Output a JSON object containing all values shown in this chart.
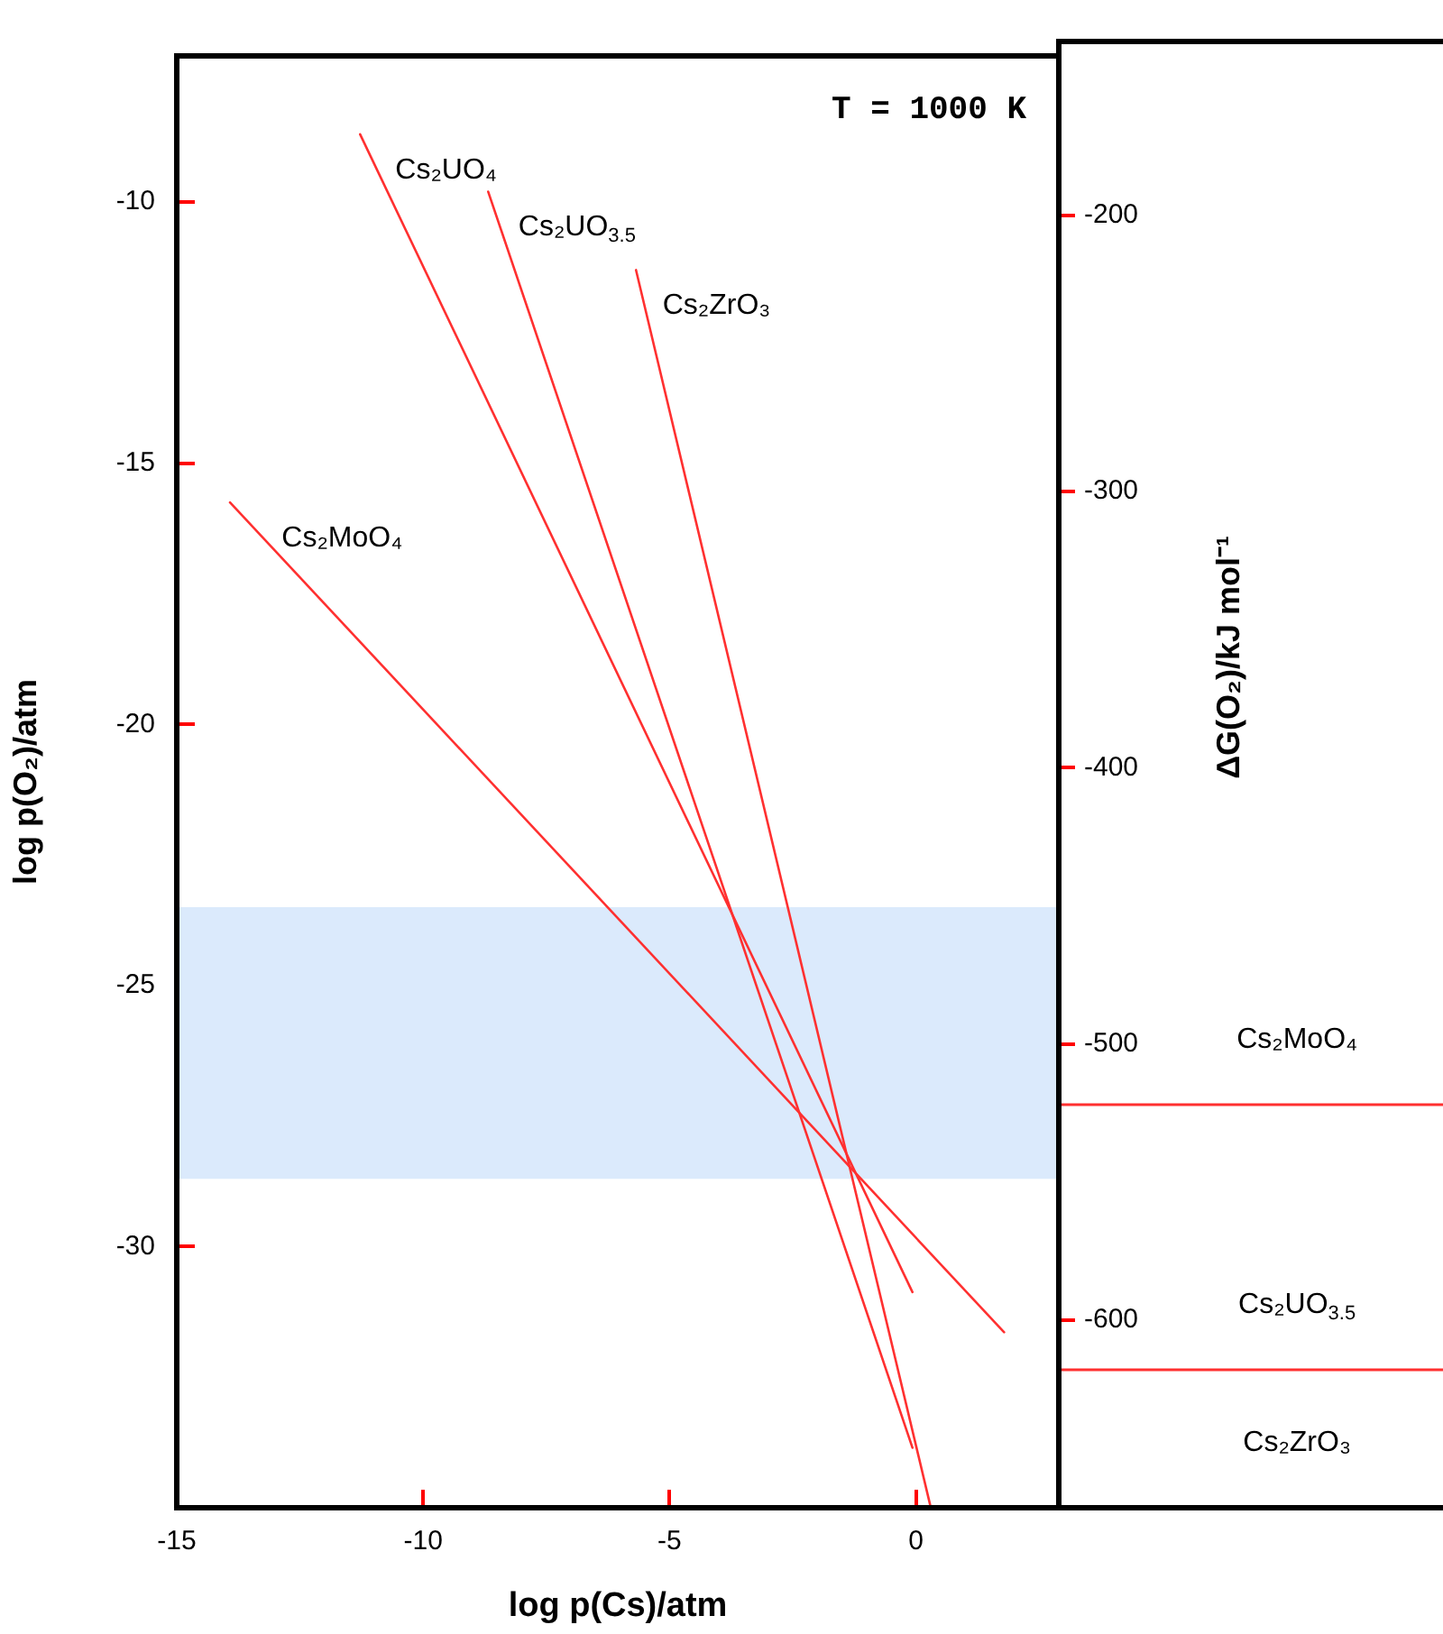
{
  "chart_data": [
    {
      "type": "line",
      "xlabel": "log p(Cs)/atm",
      "ylabel": "log p(O₂)/atm",
      "xlim": [
        -15,
        2.9
      ],
      "ylim": [
        -35,
        -7.2
      ],
      "xticks": [
        -15,
        -10,
        -5,
        0
      ],
      "yticks": [
        -10,
        -15,
        -20,
        -25,
        -30
      ],
      "series": [
        {
          "name": "Cs₂UO₄",
          "color": "#ff3030",
          "x": [
            -11.28,
            -0.07
          ],
          "values": [
            -8.7,
            -30.87
          ]
        },
        {
          "name": "Cs₂UO$_{3.5}$",
          "color": "#ff3030",
          "x": [
            -8.68,
            -0.07
          ],
          "values": [
            -9.8,
            -33.85
          ]
        },
        {
          "name": "Cs₂ZrO₃",
          "color": "#ff3030",
          "x": [
            -5.68,
            0.29
          ],
          "values": [
            -11.3,
            -34.95
          ]
        },
        {
          "name": "Cs₂MoO₄",
          "color": "#ff3030",
          "x": [
            -13.92,
            1.79
          ],
          "values": [
            -15.75,
            -31.64
          ]
        }
      ],
      "bands": [
        {
          "axis": "y",
          "from": -28.7,
          "to": -23.5,
          "color": "#dbeafc"
        }
      ],
      "annotations": [
        "T = 1000 K"
      ]
    },
    {
      "type": "line",
      "ylabel": "ΔG(O₂)/kJ mol⁻¹",
      "categories": [
        null
      ],
      "ylim": [
        -668,
        -137
      ],
      "yticks": [
        -200,
        -300,
        -400,
        -500,
        -600
      ],
      "tick_labels": "y",
      "ref_lines": [
        {
          "axis": "y",
          "value": -522,
          "color": "#ff3030"
        },
        {
          "axis": "y",
          "value": -618,
          "color": "#ff3030"
        }
      ],
      "annotations": [
        "Cs₂MoO₄",
        "Cs₂UO$_{3.5}$",
        "Cs₂ZrO₃"
      ]
    }
  ]
}
